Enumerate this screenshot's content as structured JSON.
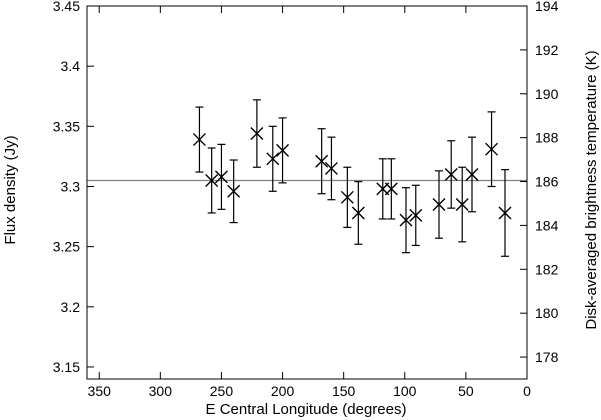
{
  "chart_data": {
    "type": "scatter",
    "xlabel": "E Central Longitude (degrees)",
    "ylabel": "Flux density (Jy)",
    "y2label": "Disk-averaged brightness temperature (K)",
    "xlim": [
      360,
      0
    ],
    "ylim": [
      3.14,
      3.45
    ],
    "y2lim": [
      177,
      194
    ],
    "x_ticks": [
      350,
      300,
      250,
      200,
      150,
      100,
      50,
      0
    ],
    "y_ticks": [
      3.15,
      3.2,
      3.25,
      3.3,
      3.35,
      3.4,
      3.45
    ],
    "y2_ticks": [
      178,
      180,
      182,
      184,
      186,
      188,
      190,
      192,
      194
    ],
    "reference_line": 3.305,
    "marker": "x-cross",
    "grid": false,
    "points": [
      {
        "x": 268,
        "y": 3.339,
        "err": 0.027
      },
      {
        "x": 258,
        "y": 3.305,
        "err": 0.027
      },
      {
        "x": 250,
        "y": 3.308,
        "err": 0.027
      },
      {
        "x": 240,
        "y": 3.296,
        "err": 0.026
      },
      {
        "x": 221,
        "y": 3.344,
        "err": 0.028
      },
      {
        "x": 208,
        "y": 3.323,
        "err": 0.027
      },
      {
        "x": 200,
        "y": 3.33,
        "err": 0.027
      },
      {
        "x": 168,
        "y": 3.321,
        "err": 0.027
      },
      {
        "x": 160,
        "y": 3.315,
        "err": 0.026
      },
      {
        "x": 147,
        "y": 3.291,
        "err": 0.025
      },
      {
        "x": 138,
        "y": 3.278,
        "err": 0.026
      },
      {
        "x": 118,
        "y": 3.298,
        "err": 0.025
      },
      {
        "x": 111,
        "y": 3.298,
        "err": 0.025
      },
      {
        "x": 99,
        "y": 3.272,
        "err": 0.027
      },
      {
        "x": 91,
        "y": 3.276,
        "err": 0.025
      },
      {
        "x": 72,
        "y": 3.285,
        "err": 0.028
      },
      {
        "x": 62,
        "y": 3.31,
        "err": 0.028
      },
      {
        "x": 53,
        "y": 3.285,
        "err": 0.031
      },
      {
        "x": 45,
        "y": 3.31,
        "err": 0.031
      },
      {
        "x": 29,
        "y": 3.331,
        "err": 0.031
      },
      {
        "x": 18,
        "y": 3.278,
        "err": 0.036
      }
    ]
  }
}
